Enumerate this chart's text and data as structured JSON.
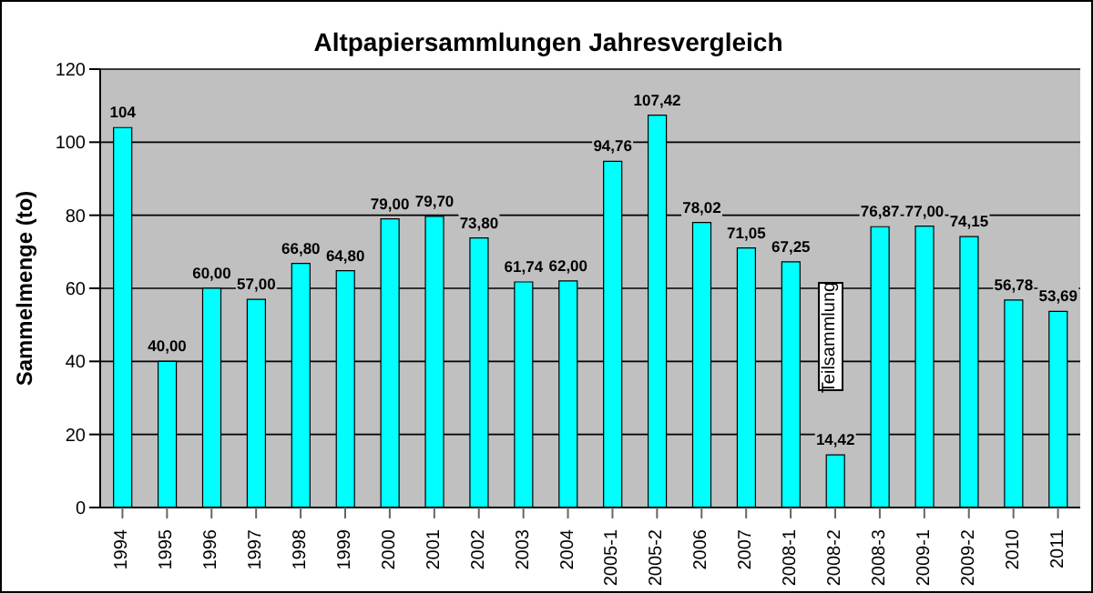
{
  "chart_data": {
    "type": "bar",
    "title": "Altpapiersammlungen Jahresvergleich",
    "ylabel": "Sammelmenge (to)",
    "categories": [
      "1994",
      "1995",
      "1996",
      "1997",
      "1998",
      "1999",
      "2000",
      "2001",
      "2002",
      "2003",
      "2004",
      "2005-1",
      "2005-2",
      "2006",
      "2007",
      "2008-1",
      "2008-2",
      "2008-3",
      "2009-1",
      "2009-2",
      "2010",
      "2011"
    ],
    "values": [
      104,
      40,
      60,
      57,
      66.8,
      64.8,
      79,
      79.7,
      73.8,
      61.74,
      62,
      94.76,
      107.42,
      78.02,
      71.05,
      67.25,
      14.42,
      76.87,
      77,
      74.15,
      56.78,
      53.69
    ],
    "value_labels": [
      "104",
      "40,00",
      "60,00",
      "57,00",
      "66,80",
      "64,80",
      "79,00",
      "79,70",
      "73,80",
      "61,74",
      "62,00",
      "94,76",
      "107,42",
      "78,02",
      "71,05",
      "67,25",
      "14,42",
      "76,87",
      "77,00",
      "74,15",
      "56,78",
      "53,69"
    ],
    "color": "#00ffff",
    "ylim": [
      0,
      120
    ],
    "yticks": [
      0,
      20,
      40,
      60,
      80,
      100,
      120
    ],
    "grid": "y",
    "annotations": [
      "Teilsammlung"
    ]
  }
}
